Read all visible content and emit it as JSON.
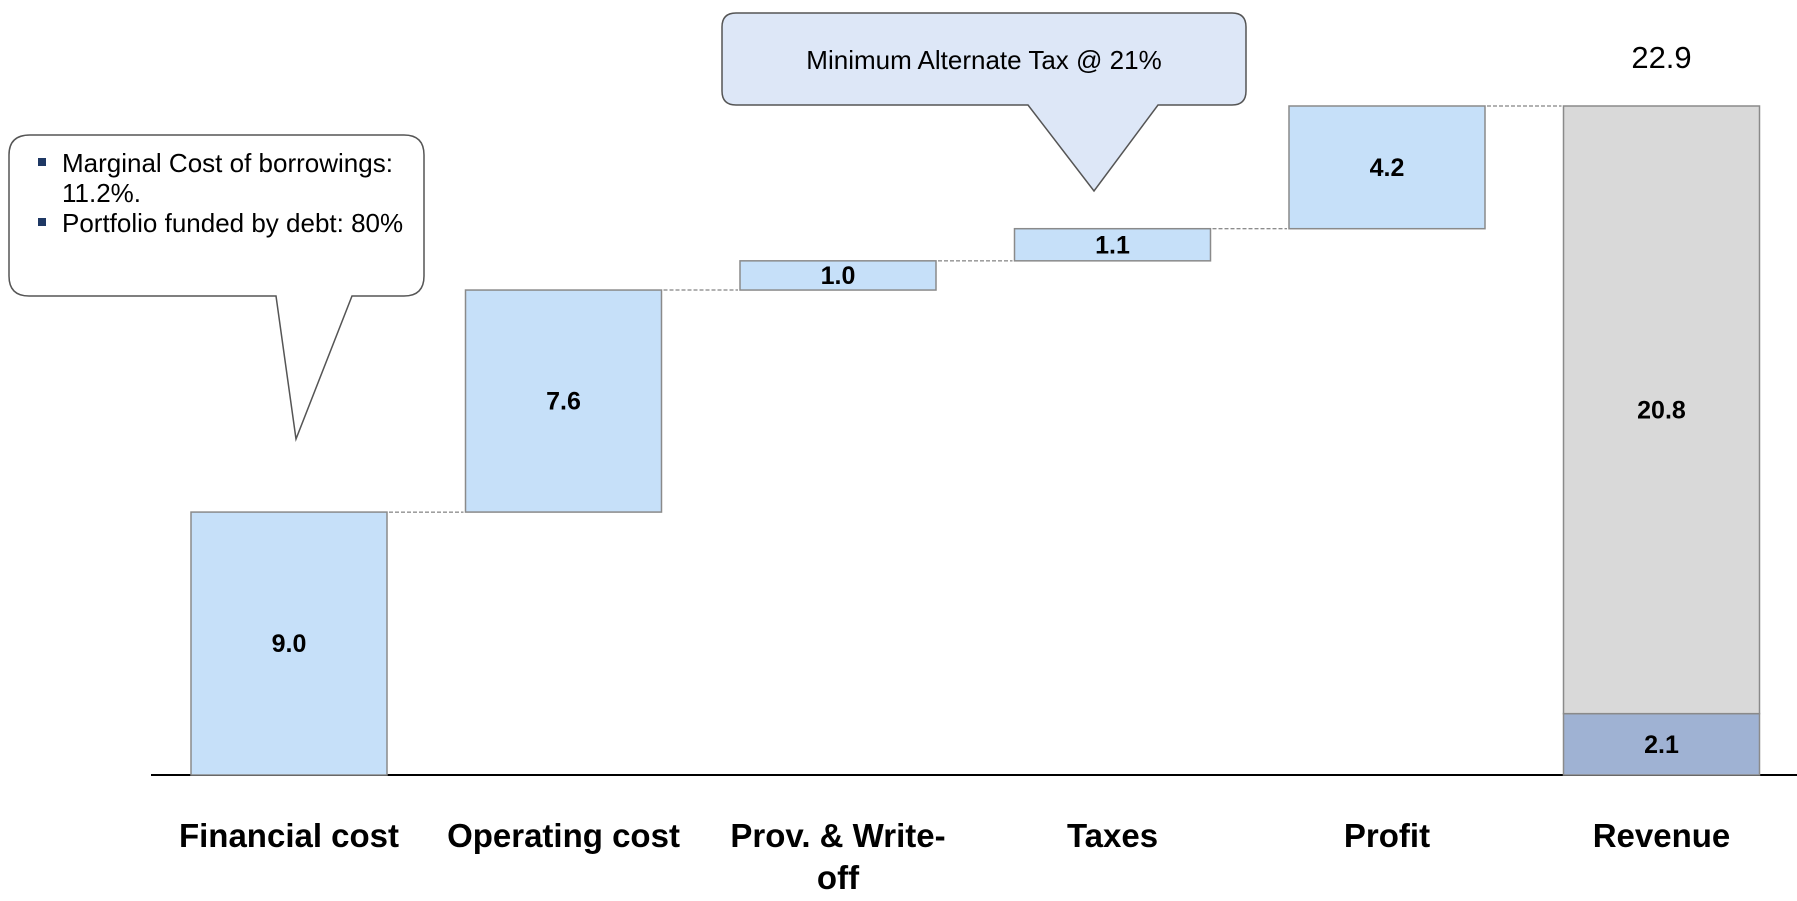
{
  "chart_data": {
    "type": "waterfall",
    "categories": [
      "Financial cost",
      "Operating cost",
      "Prov. & Write-off",
      "Taxes",
      "Profit",
      "Revenue"
    ],
    "values": [
      9.0,
      7.6,
      1.0,
      1.1,
      4.2,
      22.9
    ],
    "value_labels": [
      "9.0",
      "7.6",
      "1.0",
      "1.1",
      "4.2",
      "22.9"
    ],
    "color": "#c6e0f9",
    "total_segments": {
      "values": [
        2.1,
        20.8
      ],
      "value_labels": [
        "2.1",
        "20.8"
      ],
      "colors": [
        "#9fb2d3",
        "#d9d9d9"
      ]
    },
    "annotations": [
      {
        "items": [
          "Marginal Cost of borrowings: 11.2%.",
          "Portfolio funded by debt: 80%"
        ]
      },
      {
        "text": "Minimum Alternate Tax @ 21%"
      }
    ]
  }
}
